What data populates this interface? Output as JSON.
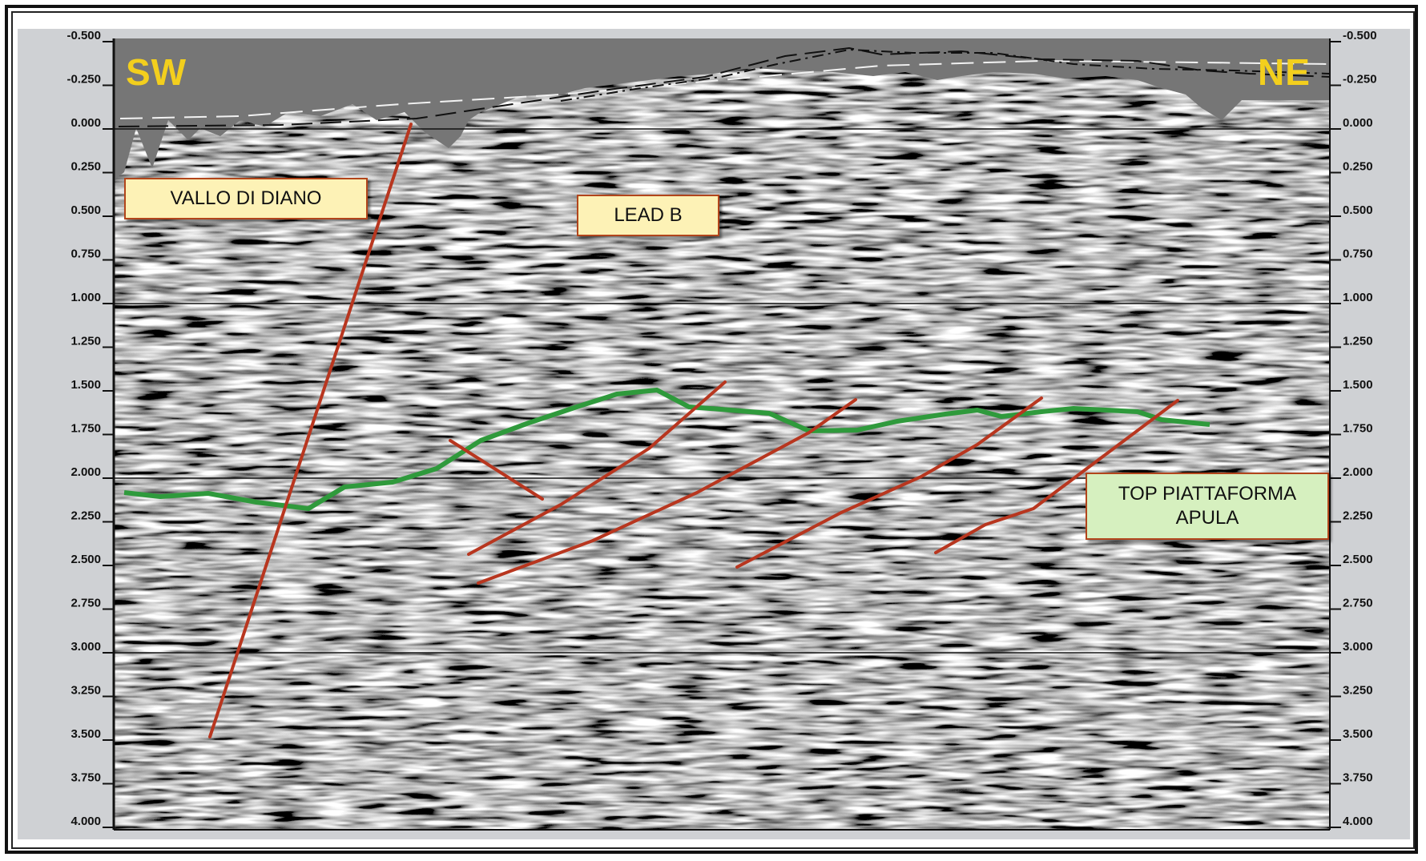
{
  "orientation": {
    "left": "SW",
    "right": "NE"
  },
  "labels": {
    "vallo": "VALLO DI DIANO",
    "lead": "LEAD B",
    "top_line1": "TOP PIATTAFORMA",
    "top_line2": "APULA"
  },
  "axis": {
    "ticks": [
      "-0.500",
      "-0.250",
      "0.000",
      "0.250",
      "0.500",
      "0.750",
      "1.000",
      "1.250",
      "1.500",
      "1.750",
      "2.000",
      "2.250",
      "2.500",
      "2.750",
      "3.000",
      "3.250",
      "3.500",
      "3.750",
      "4.000"
    ]
  },
  "colors": {
    "fault": "#b8361f",
    "horizon": "#2f9a3c",
    "direction": "#f3cf1d",
    "label_border": "#b2451b"
  }
}
